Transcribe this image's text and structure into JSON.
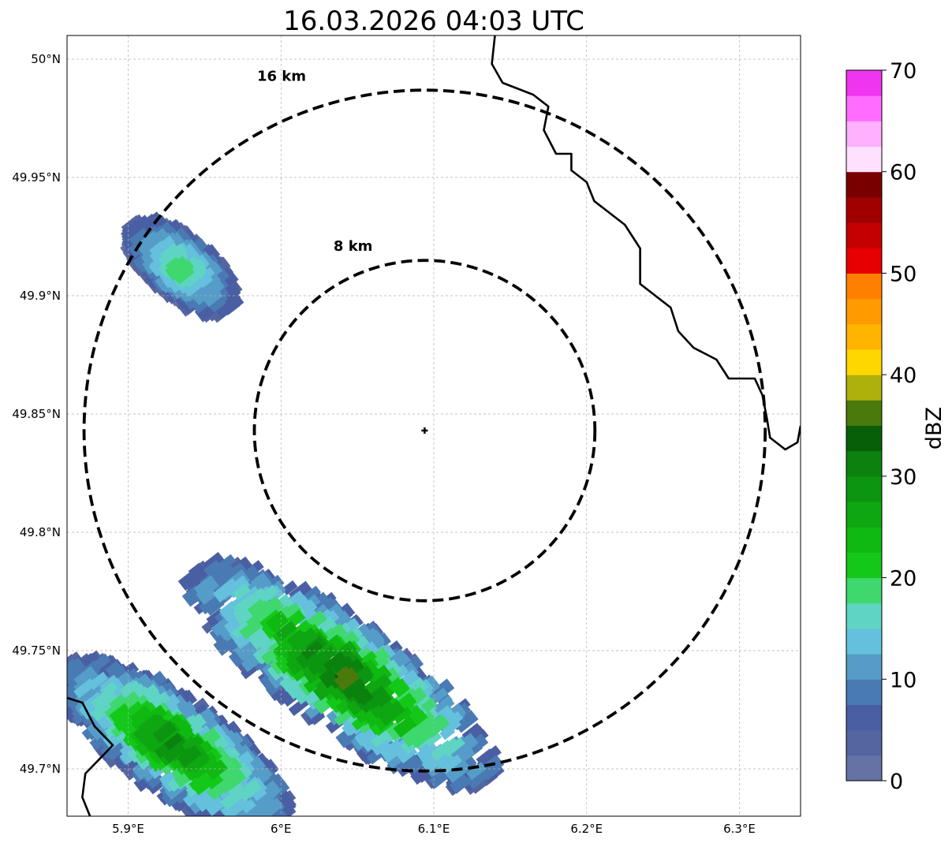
{
  "chart_data": {
    "type": "heatmap",
    "title": "16.03.2026 04:03 UTC",
    "xlim": [
      5.86,
      6.34
    ],
    "ylim": [
      49.68,
      50.01
    ],
    "x_ticks": [
      {
        "value": 5.9,
        "label": "5.9°E"
      },
      {
        "value": 6.0,
        "label": "6°E"
      },
      {
        "value": 6.1,
        "label": "6.1°E"
      },
      {
        "value": 6.2,
        "label": "6.2°E"
      },
      {
        "value": 6.3,
        "label": "6.3°E"
      }
    ],
    "y_ticks": [
      {
        "value": 49.7,
        "label": "49.7°N"
      },
      {
        "value": 49.75,
        "label": "49.75°N"
      },
      {
        "value": 49.8,
        "label": "49.8°N"
      },
      {
        "value": 49.85,
        "label": "49.85°N"
      },
      {
        "value": 49.9,
        "label": "49.9°N"
      },
      {
        "value": 49.95,
        "label": "49.95°N"
      },
      {
        "value": 50.0,
        "label": "50°N"
      }
    ],
    "grid": true,
    "radar_site": {
      "lon": 6.094,
      "lat": 49.843
    },
    "range_rings": [
      {
        "radius_km": 8,
        "label": "8 km"
      },
      {
        "radius_km": 16,
        "label": "16 km"
      }
    ],
    "colorbar": {
      "label": "dBZ",
      "min": 0,
      "max": 70,
      "step": 2.5,
      "ticks": [
        0,
        10,
        20,
        30,
        40,
        50,
        60,
        70
      ],
      "colors": [
        "#6472a6",
        "#5565a0",
        "#4a5fa3",
        "#4a7ab3",
        "#559dc8",
        "#64c0dc",
        "#5fd4c4",
        "#3ed86e",
        "#14c81a",
        "#10b812",
        "#0ea611",
        "#0c9510",
        "#0b820e",
        "#075f08",
        "#4a7a0c",
        "#aeb00c",
        "#ffd700",
        "#ffb400",
        "#ff9a00",
        "#ff7f00",
        "#e60000",
        "#c40000",
        "#a00000",
        "#7a0000",
        "#ffe0ff",
        "#ffb0ff",
        "#ff6cff",
        "#ef35ef"
      ]
    },
    "echoes": [
      {
        "name": "northwest-cell",
        "center": [
          5.935,
          49.912
        ],
        "semi_axes_deg": [
          0.042,
          0.018
        ],
        "rotation_deg": -40,
        "peak_dbz": 18
      },
      {
        "name": "southwest-band",
        "center": [
          6.04,
          49.74
        ],
        "semi_axes_deg": [
          0.12,
          0.035
        ],
        "rotation_deg": -35,
        "peak_dbz": 34
      },
      {
        "name": "southwest-band-lower",
        "center": [
          5.93,
          49.71
        ],
        "semi_axes_deg": [
          0.09,
          0.03
        ],
        "rotation_deg": -35,
        "peak_dbz": 30
      }
    ],
    "borders": {
      "luxembourg_germany_border": [
        [
          6.14,
          50.01
        ],
        [
          6.138,
          49.998
        ],
        [
          6.145,
          49.99
        ],
        [
          6.165,
          49.985
        ],
        [
          6.175,
          49.98
        ],
        [
          6.172,
          49.97
        ],
        [
          6.18,
          49.96
        ],
        [
          6.19,
          49.96
        ],
        [
          6.19,
          49.953
        ],
        [
          6.2,
          49.948
        ],
        [
          6.205,
          49.94
        ],
        [
          6.225,
          49.93
        ],
        [
          6.235,
          49.92
        ],
        [
          6.235,
          49.905
        ],
        [
          6.245,
          49.9
        ],
        [
          6.255,
          49.895
        ],
        [
          6.26,
          49.885
        ],
        [
          6.27,
          49.878
        ],
        [
          6.285,
          49.873
        ],
        [
          6.293,
          49.865
        ],
        [
          6.31,
          49.865
        ],
        [
          6.315,
          49.858
        ],
        [
          6.318,
          49.848
        ],
        [
          6.32,
          49.84
        ],
        [
          6.33,
          49.835
        ],
        [
          6.338,
          49.838
        ],
        [
          6.34,
          49.845
        ]
      ],
      "luxembourg_belgium_border": [
        [
          5.86,
          49.73
        ],
        [
          5.87,
          49.728
        ],
        [
          5.878,
          49.718
        ],
        [
          5.89,
          49.71
        ],
        [
          5.872,
          49.698
        ],
        [
          5.87,
          49.688
        ],
        [
          5.875,
          49.68
        ]
      ]
    }
  }
}
